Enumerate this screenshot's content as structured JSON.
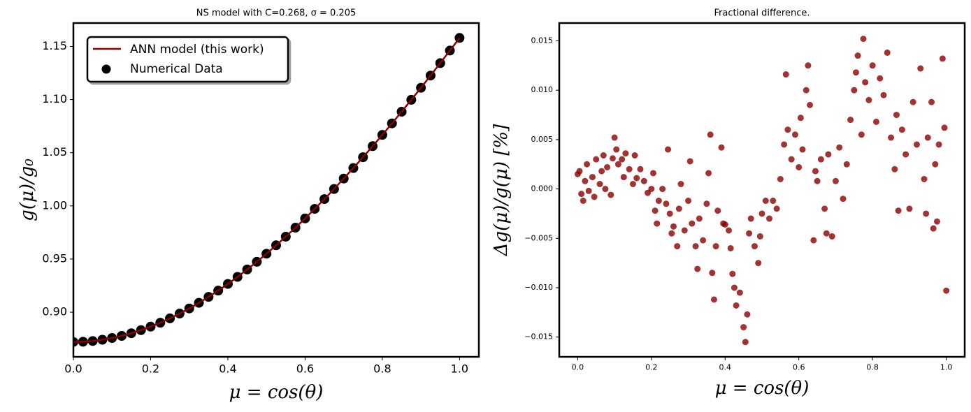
{
  "chart_data": [
    {
      "type": "line",
      "title": "NS model with C=0.268, σ = 0.205",
      "xlabel": "μ = cos(θ)",
      "ylabel": "g(μ)/g₀",
      "x": [
        0,
        0.025,
        0.05,
        0.075,
        0.1,
        0.125,
        0.15,
        0.175,
        0.2,
        0.225,
        0.25,
        0.275,
        0.3,
        0.325,
        0.35,
        0.375,
        0.4,
        0.425,
        0.45,
        0.475,
        0.5,
        0.525,
        0.55,
        0.575,
        0.6,
        0.625,
        0.65,
        0.675,
        0.7,
        0.725,
        0.75,
        0.775,
        0.8,
        0.825,
        0.85,
        0.875,
        0.9,
        0.925,
        0.95,
        0.975,
        1.0
      ],
      "series": [
        {
          "name": "ANN model (this work)",
          "color": "#8b0000",
          "style": "line",
          "values": [
            0.872,
            0.8722,
            0.8729,
            0.8741,
            0.8757,
            0.8777,
            0.8802,
            0.8831,
            0.8864,
            0.8901,
            0.8942,
            0.8987,
            0.9035,
            0.9088,
            0.9144,
            0.9203,
            0.9266,
            0.9332,
            0.9402,
            0.9474,
            0.955,
            0.9629,
            0.971,
            0.9795,
            0.9882,
            0.9972,
            1.0064,
            1.0159,
            1.0257,
            1.0356,
            1.0458,
            1.0562,
            1.0668,
            1.0776,
            1.0886,
            1.0998,
            1.1111,
            1.1226,
            1.1343,
            1.1461,
            1.158
          ]
        },
        {
          "name": "Numerical Data",
          "color": "#000000",
          "style": "scatter",
          "values": [
            0.872,
            0.8722,
            0.8729,
            0.8741,
            0.8757,
            0.8777,
            0.8802,
            0.8831,
            0.8864,
            0.8901,
            0.8942,
            0.8987,
            0.9035,
            0.9088,
            0.9144,
            0.9203,
            0.9266,
            0.9332,
            0.9402,
            0.9474,
            0.955,
            0.9629,
            0.971,
            0.9795,
            0.9882,
            0.9972,
            1.0064,
            1.0159,
            1.0257,
            1.0356,
            1.0458,
            1.0562,
            1.0668,
            1.0776,
            1.0886,
            1.0998,
            1.1111,
            1.1226,
            1.1343,
            1.1461,
            1.158
          ]
        }
      ],
      "xlim": [
        0,
        1.05
      ],
      "xticks": [
        {
          "value": 0,
          "label": "0.0"
        },
        0.2,
        0.4,
        0.6,
        0.8,
        {
          "value": 1,
          "label": "1.0"
        }
      ],
      "ylim": [
        0.858,
        1.172
      ],
      "yticks": [
        {
          "value": 0.9,
          "label": "0.90"
        },
        0.95,
        {
          "value": 1.0,
          "label": "1.00"
        },
        1.05,
        {
          "value": 1.1,
          "label": "1.10"
        },
        1.15
      ],
      "legend": "upper left"
    },
    {
      "type": "scatter",
      "title": "Fractional difference.",
      "xlabel": "μ = cos(θ)",
      "ylabel": "Δg(μ)/g(μ)  [%]",
      "color": "#8b0000",
      "x": [
        0.0,
        0.005,
        0.01,
        0.015,
        0.02,
        0.025,
        0.03,
        0.04,
        0.045,
        0.05,
        0.06,
        0.065,
        0.07,
        0.075,
        0.08,
        0.09,
        0.095,
        0.1,
        0.105,
        0.11,
        0.12,
        0.125,
        0.13,
        0.14,
        0.15,
        0.155,
        0.16,
        0.17,
        0.18,
        0.19,
        0.2,
        0.205,
        0.21,
        0.215,
        0.22,
        0.23,
        0.24,
        0.245,
        0.25,
        0.255,
        0.26,
        0.27,
        0.275,
        0.28,
        0.29,
        0.3,
        0.305,
        0.31,
        0.32,
        0.325,
        0.33,
        0.34,
        0.35,
        0.355,
        0.36,
        0.365,
        0.37,
        0.375,
        0.38,
        0.39,
        0.395,
        0.4,
        0.41,
        0.415,
        0.42,
        0.425,
        0.43,
        0.44,
        0.45,
        0.455,
        0.46,
        0.465,
        0.47,
        0.48,
        0.49,
        0.495,
        0.5,
        0.51,
        0.52,
        0.53,
        0.54,
        0.55,
        0.56,
        0.565,
        0.57,
        0.58,
        0.59,
        0.6,
        0.605,
        0.61,
        0.62,
        0.625,
        0.63,
        0.64,
        0.645,
        0.65,
        0.66,
        0.67,
        0.675,
        0.68,
        0.69,
        0.7,
        0.71,
        0.72,
        0.73,
        0.74,
        0.75,
        0.755,
        0.76,
        0.77,
        0.775,
        0.78,
        0.79,
        0.8,
        0.81,
        0.82,
        0.83,
        0.84,
        0.85,
        0.86,
        0.865,
        0.87,
        0.88,
        0.89,
        0.9,
        0.91,
        0.92,
        0.93,
        0.94,
        0.945,
        0.95,
        0.96,
        0.965,
        0.97,
        0.975,
        0.98,
        0.99,
        0.995,
        1.0
      ],
      "values": [
        0.0015,
        0.0018,
        -0.0005,
        -0.0012,
        0.0008,
        0.0025,
        -0.0002,
        0.0012,
        -0.0008,
        0.003,
        0.0005,
        0.0018,
        0.0034,
        0.0,
        0.0022,
        -0.0006,
        0.0031,
        0.0052,
        0.004,
        0.0025,
        0.003,
        0.0012,
        0.0036,
        0.002,
        0.0005,
        0.0034,
        0.0011,
        0.002,
        0.0008,
        -0.0004,
        0.0,
        0.0016,
        -0.0022,
        -0.0035,
        -0.0012,
        0.0,
        -0.0015,
        0.004,
        -0.0025,
        -0.0045,
        -0.0038,
        -0.0058,
        -0.002,
        0.0005,
        -0.0042,
        -0.0012,
        0.0028,
        -0.0035,
        -0.0058,
        -0.0081,
        -0.003,
        -0.0052,
        -0.0015,
        0.0016,
        0.0055,
        -0.0085,
        -0.0112,
        -0.0058,
        -0.0022,
        0.0042,
        -0.0035,
        -0.0036,
        -0.0042,
        -0.006,
        -0.0086,
        -0.01,
        -0.0118,
        -0.0105,
        -0.014,
        -0.0155,
        -0.0127,
        -0.0045,
        -0.003,
        -0.0058,
        -0.0075,
        -0.0048,
        -0.0025,
        -0.0012,
        -0.003,
        -0.0012,
        -0.002,
        0.001,
        0.0045,
        0.0116,
        0.006,
        0.003,
        0.0055,
        0.0022,
        0.0072,
        0.004,
        0.01,
        0.0125,
        0.0085,
        -0.0052,
        0.0018,
        0.0008,
        0.003,
        -0.002,
        -0.0045,
        0.0035,
        -0.0048,
        0.0008,
        0.0042,
        -0.001,
        0.0025,
        0.007,
        0.01,
        0.0118,
        0.0135,
        0.0055,
        0.0152,
        0.0108,
        0.009,
        0.0125,
        0.0068,
        0.0112,
        0.0095,
        0.0138,
        0.0052,
        0.002,
        0.0075,
        -0.0022,
        0.006,
        0.0035,
        -0.002,
        0.0088,
        0.0045,
        0.0122,
        0.001,
        -0.0025,
        0.0052,
        0.0088,
        -0.004,
        0.0025,
        -0.0033,
        0.0045,
        0.0132,
        0.0062,
        -0.0103
      ],
      "xlim": [
        -0.05,
        1.05
      ],
      "xticks": [
        {
          "value": 0,
          "label": "0.0"
        },
        0.2,
        0.4,
        0.6,
        0.8,
        {
          "value": 1,
          "label": "1.0"
        }
      ],
      "ylim": [
        -0.017,
        0.0168
      ],
      "yticks": [
        {
          "value": -0.015,
          "label": "−0.015"
        },
        {
          "value": -0.01,
          "label": "−0.010"
        },
        {
          "value": -0.005,
          "label": "−0.005"
        },
        {
          "value": 0,
          "label": "0.000"
        },
        {
          "value": 0.005,
          "label": "0.005"
        },
        {
          "value": 0.01,
          "label": "0.010"
        },
        {
          "value": 0.015,
          "label": "0.015"
        }
      ]
    }
  ]
}
